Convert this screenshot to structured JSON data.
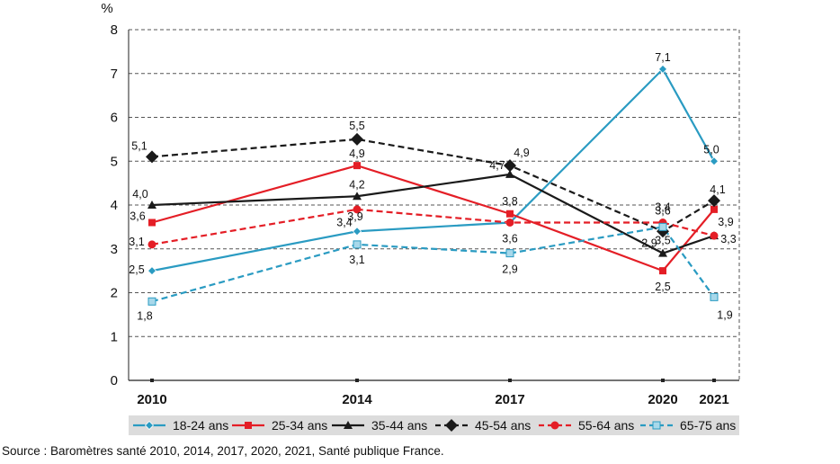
{
  "chart_data": {
    "type": "line",
    "ylabel": "%",
    "ylim": [
      0,
      8
    ],
    "yticks": [
      0,
      1,
      2,
      3,
      4,
      5,
      6,
      7,
      8
    ],
    "x": [
      2010,
      2014,
      2017,
      2020,
      2021
    ],
    "x_labels": [
      "2010",
      "2014",
      "2017",
      "2020",
      "2021"
    ],
    "grid": "horizontal-dashed",
    "legend_position": "bottom",
    "series": [
      {
        "name": "18-24 ans",
        "values": [
          2.5,
          3.4,
          3.6,
          7.1,
          5.0
        ],
        "labels": [
          "2,5",
          "3,4",
          "3,6",
          "7,1",
          "5,0"
        ],
        "color": "#2a9bc2",
        "dash": false,
        "marker": "diamond-small"
      },
      {
        "name": "25-34 ans",
        "values": [
          3.6,
          4.9,
          3.8,
          2.5,
          3.9
        ],
        "labels": [
          "3,6",
          "4,9",
          "3,8",
          "2,5",
          "3,9"
        ],
        "color": "#e41e26",
        "dash": false,
        "marker": "square"
      },
      {
        "name": "35-44 ans",
        "values": [
          4.0,
          4.2,
          4.7,
          2.9,
          3.3
        ],
        "labels": [
          "4,0",
          "4,2",
          "4,7",
          "2,9",
          "3,3"
        ],
        "color": "#1a1a1a",
        "dash": false,
        "marker": "triangle"
      },
      {
        "name": "45-54 ans",
        "values": [
          5.1,
          5.5,
          4.9,
          3.4,
          4.1
        ],
        "labels": [
          "5,1",
          "5,5",
          "4,9",
          "3,4",
          "4,1"
        ],
        "color": "#1a1a1a",
        "dash": true,
        "marker": "diamond"
      },
      {
        "name": "55-64 ans",
        "values": [
          3.1,
          3.9,
          3.6,
          3.6,
          3.3
        ],
        "labels": [
          "3,1",
          "3,9",
          null,
          "3,6",
          null
        ],
        "color": "#e41e26",
        "dash": true,
        "marker": "circle"
      },
      {
        "name": "65-75 ans",
        "values": [
          1.8,
          3.1,
          2.9,
          3.5,
          1.9
        ],
        "labels": [
          "1,8",
          "3,1",
          "2,9",
          "3,5",
          "1,9"
        ],
        "color": "#2a9bc2",
        "dash": true,
        "marker": "square-light"
      }
    ]
  },
  "source_note": "Source : Baromètres santé 2010, 2014, 2017, 2020, 2021, Santé publique France."
}
